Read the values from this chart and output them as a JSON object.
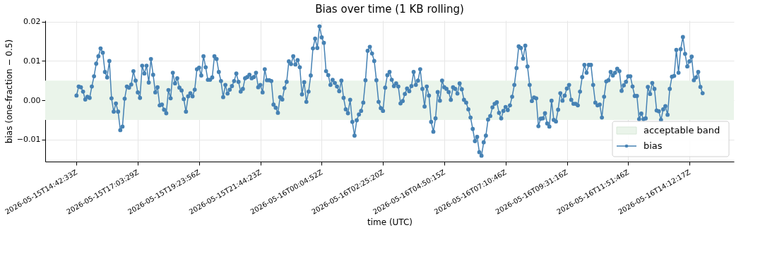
{
  "chart_data": {
    "type": "line",
    "title": "Bias over time (1 KB rolling)",
    "xlabel": "time (UTC)",
    "ylabel": "bias (one-fraction − 0.5)",
    "categories": [
      "2026-05-15T14:42:33Z",
      null,
      null,
      null,
      null,
      null,
      null,
      null,
      null,
      null,
      null,
      null,
      null,
      null,
      null,
      null,
      null,
      null,
      null,
      null,
      null,
      null,
      null,
      null,
      null,
      null,
      null,
      null,
      "2026-05-15T17:03:29Z",
      null,
      null,
      null,
      null,
      null,
      null,
      null,
      null,
      null,
      null,
      null,
      null,
      null,
      null,
      null,
      null,
      null,
      null,
      null,
      null,
      null,
      null,
      null,
      null,
      null,
      null,
      null,
      "2026-05-15T19:23:56Z",
      null,
      null,
      null,
      null,
      null,
      null,
      null,
      null,
      null,
      null,
      null,
      null,
      null,
      null,
      null,
      null,
      null,
      null,
      null,
      null,
      null,
      null,
      null,
      null,
      null,
      null,
      null,
      "2026-05-15T21:44:23Z",
      null,
      null,
      null,
      null,
      null,
      null,
      null,
      null,
      null,
      null,
      null,
      null,
      null,
      null,
      null,
      null,
      null,
      null,
      null,
      null,
      null,
      null,
      null,
      null,
      null,
      null,
      null,
      "2026-05-16T00:04:52Z",
      null,
      null,
      null,
      null,
      null,
      null,
      null,
      null,
      null,
      null,
      null,
      null,
      null,
      null,
      null,
      null,
      null,
      null,
      null,
      null,
      null,
      null,
      null,
      null,
      null,
      null,
      null,
      "2026-05-16T02:25:20Z",
      null,
      null,
      null,
      null,
      null,
      null,
      null,
      null,
      null,
      null,
      null,
      null,
      null,
      null,
      null,
      null,
      null,
      null,
      null,
      null,
      null,
      null,
      null,
      null,
      null,
      null,
      null,
      "2026-05-16T04:50:15Z",
      null,
      null,
      null,
      null,
      null,
      null,
      null,
      null,
      null,
      null,
      null,
      null,
      null,
      null,
      null,
      null,
      null,
      null,
      null,
      null,
      null,
      null,
      null,
      null,
      null,
      null,
      null,
      "2026-05-16T07:10:46Z",
      null,
      null,
      null,
      null,
      null,
      null,
      null,
      null,
      null,
      null,
      null,
      null,
      null,
      null,
      null,
      null,
      null,
      null,
      null,
      null,
      null,
      null,
      null,
      null,
      null,
      null,
      null,
      "2026-05-16T09:31:16Z",
      null,
      null,
      null,
      null,
      null,
      null,
      null,
      null,
      null,
      null,
      null,
      null,
      null,
      null,
      null,
      null,
      null,
      null,
      null,
      null,
      null,
      null,
      null,
      null,
      null,
      null,
      null,
      "2026-05-16T11:51:46Z",
      null,
      null,
      null,
      null,
      null,
      null,
      null,
      null,
      null,
      null,
      null,
      null,
      null,
      null,
      null,
      null,
      null,
      null,
      null,
      null,
      null,
      null,
      null,
      null,
      null,
      null,
      null,
      "2026-05-16T14:12:17Z",
      null,
      null,
      null,
      null,
      null,
      null
    ],
    "series": [
      {
        "name": "bias",
        "color": "#4682b4",
        "values": [
          0.0012,
          0.0035,
          0.0033,
          0.0022,
          0.0002,
          0.0009,
          0.0006,
          0.0035,
          0.0061,
          0.0093,
          0.0112,
          0.0132,
          0.0121,
          0.0072,
          0.0058,
          0.01,
          0.0005,
          -0.0029,
          -0.0008,
          -0.0029,
          -0.0076,
          -0.0067,
          0.0004,
          0.0035,
          0.0032,
          0.004,
          0.0074,
          0.005,
          0.002,
          0.0006,
          0.0088,
          0.0068,
          0.0088,
          0.0045,
          0.0105,
          0.0065,
          0.002,
          0.0033,
          -0.0013,
          -0.0011,
          -0.0024,
          -0.0033,
          0.0026,
          0.0005,
          0.007,
          0.0043,
          0.0056,
          0.0032,
          0.0025,
          0.0003,
          -0.0029,
          0.001,
          0.0018,
          0.001,
          0.0027,
          0.0079,
          0.0083,
          0.0063,
          0.0112,
          0.0084,
          0.0052,
          0.0052,
          0.0058,
          0.0112,
          0.0105,
          0.0072,
          0.0049,
          0.0008,
          0.0039,
          0.0017,
          0.0027,
          0.0036,
          0.0049,
          0.0068,
          0.0047,
          0.0022,
          0.0029,
          0.0056,
          0.0059,
          0.0065,
          0.0056,
          0.0059,
          0.007,
          0.0033,
          0.0039,
          0.002,
          0.0079,
          0.0051,
          0.0051,
          0.0049,
          -0.0011,
          -0.0019,
          -0.0032,
          0.0008,
          0.0002,
          0.0031,
          0.0047,
          0.0099,
          0.0092,
          0.0112,
          0.0091,
          0.0102,
          0.0084,
          0.0015,
          0.0046,
          -0.0004,
          0.0022,
          0.0063,
          0.0132,
          0.0157,
          0.0133,
          0.0188,
          0.016,
          0.0146,
          0.0074,
          0.0064,
          0.0039,
          0.0052,
          0.0044,
          0.0035,
          0.0023,
          0.005,
          0.0006,
          -0.0023,
          -0.0033,
          0.0001,
          -0.0055,
          -0.009,
          -0.0051,
          -0.0036,
          -0.0027,
          -0.0006,
          0.0051,
          0.0126,
          0.0136,
          0.0119,
          0.01,
          0.0051,
          -0.0004,
          -0.002,
          -0.0027,
          0.0032,
          0.0064,
          0.0072,
          0.0052,
          0.0036,
          0.0043,
          0.0035,
          -0.0008,
          -0.0002,
          0.0016,
          0.003,
          0.0023,
          0.0036,
          0.0072,
          0.0039,
          0.005,
          0.0079,
          0.0029,
          -0.0016,
          0.0035,
          0.0012,
          -0.0055,
          -0.008,
          -0.0046,
          0.0021,
          -0.0001,
          0.005,
          0.0033,
          0.0029,
          0.0021,
          0.0001,
          0.0033,
          0.0029,
          0.0017,
          0.0043,
          0.0028,
          0.0001,
          -0.0006,
          -0.0023,
          -0.0044,
          -0.0073,
          -0.0104,
          -0.0093,
          -0.0132,
          -0.0141,
          -0.0107,
          -0.009,
          -0.0049,
          -0.004,
          -0.0018,
          -0.0009,
          -0.0005,
          -0.0032,
          -0.0046,
          -0.0027,
          -0.0017,
          -0.0025,
          -0.0013,
          0.0009,
          0.0039,
          0.0082,
          0.0137,
          0.0133,
          0.0106,
          0.0139,
          0.0086,
          0.0039,
          -0.0002,
          0.0007,
          0.0005,
          -0.0066,
          -0.0047,
          -0.0046,
          -0.0033,
          -0.0059,
          -0.0067,
          -0.0001,
          -0.005,
          -0.0054,
          -0.0024,
          0.0018,
          -0.0001,
          0.0012,
          0.003,
          0.0039,
          0.0001,
          -0.0009,
          -0.0009,
          -0.0013,
          0.0022,
          0.0059,
          0.009,
          0.007,
          0.009,
          0.009,
          0.0039,
          -0.0006,
          -0.0013,
          -0.0011,
          -0.0044,
          0.0009,
          0.0048,
          0.0051,
          0.0072,
          0.0063,
          0.007,
          0.008,
          0.0074,
          0.0024,
          0.0038,
          0.0047,
          0.0061,
          0.0061,
          0.0035,
          0.0011,
          0.0011,
          -0.0048,
          -0.0034,
          -0.0048,
          -0.0046,
          0.0034,
          0.0016,
          0.0044,
          0.0029,
          -0.0026,
          -0.0028,
          -0.005,
          -0.0023,
          -0.0015,
          -0.0037,
          0.0029,
          0.006,
          0.0062,
          0.0128,
          0.007,
          0.013,
          0.0161,
          0.0118,
          0.0086,
          0.0099,
          0.0111,
          0.0051,
          0.0058,
          0.0072,
          0.0034,
          0.0018
        ]
      }
    ],
    "ylim": [
      -0.0156,
      0.0203
    ],
    "yticks": [
      {
        "value": -0.01,
        "label": "−0.01"
      },
      {
        "value": 0,
        "label": "0.00"
      },
      {
        "value": 0.01,
        "label": "0.01"
      },
      {
        "value": 0.02,
        "label": "0.02"
      }
    ],
    "bands": [
      {
        "axis": "y",
        "from": -0.005,
        "to": 0.005,
        "label": "acceptable band",
        "color": "#eaf4ea"
      }
    ],
    "grid": true,
    "legend": "bottom right",
    "marker": "circle",
    "line_style": "solid"
  }
}
